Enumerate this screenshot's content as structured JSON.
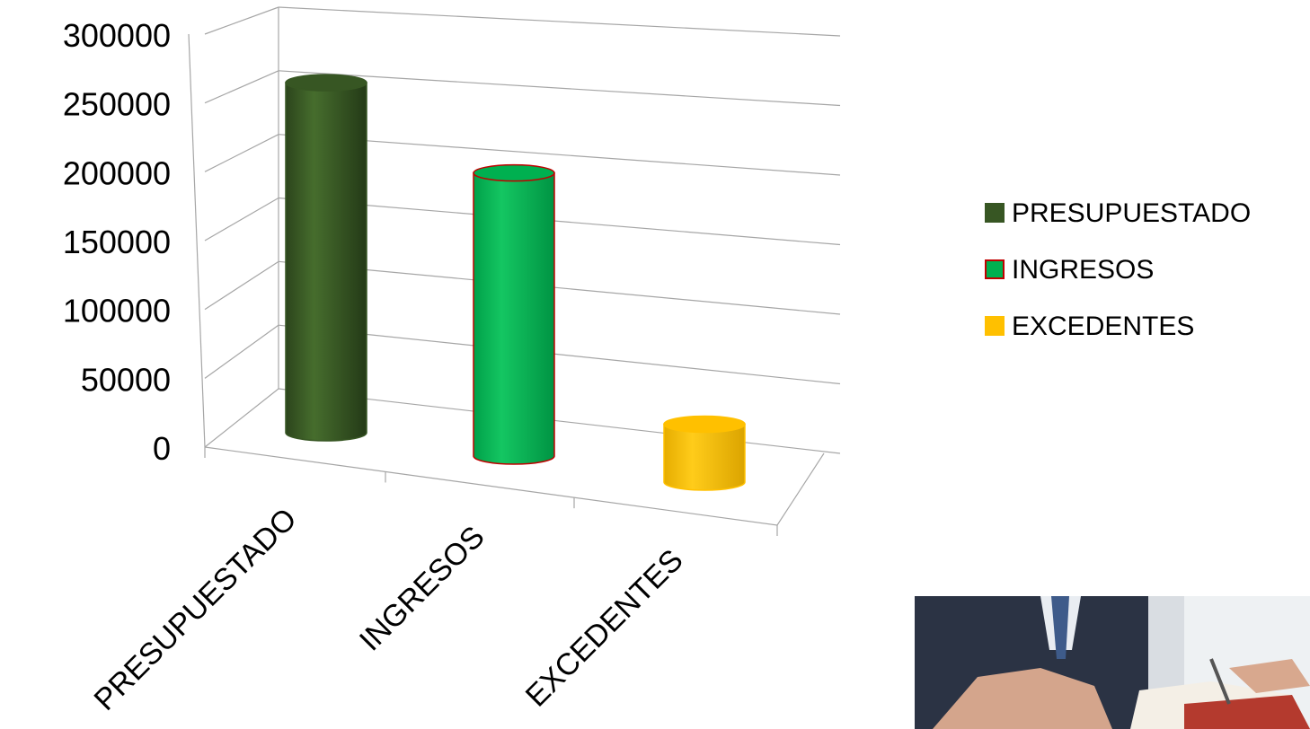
{
  "chart_data": {
    "type": "bar",
    "style": "3d-cylinder",
    "categories": [
      "PRESUPUESTADO",
      "INGRESOS",
      "EXCEDENTES"
    ],
    "values": [
      272000,
      220000,
      45000
    ],
    "ylim": [
      0,
      300000
    ],
    "yticks": [
      "0",
      "50000",
      "100000",
      "150000",
      "200000",
      "250000",
      "300000"
    ],
    "grid": true,
    "legend_position": "right",
    "legend": [
      {
        "label": "PRESUPUESTADO",
        "color": "#375623",
        "outline": "#375623"
      },
      {
        "label": "INGRESOS",
        "color": "#00B050",
        "outline": "#C00000"
      },
      {
        "label": "EXCEDENTES",
        "color": "#FFC000",
        "outline": "#FFC000"
      }
    ],
    "colors": [
      "#375623",
      "#00B050",
      "#FFC000"
    ],
    "title": "",
    "xlabel": "",
    "ylabel": ""
  },
  "decoration": {
    "image": "business-handshake-photo"
  }
}
